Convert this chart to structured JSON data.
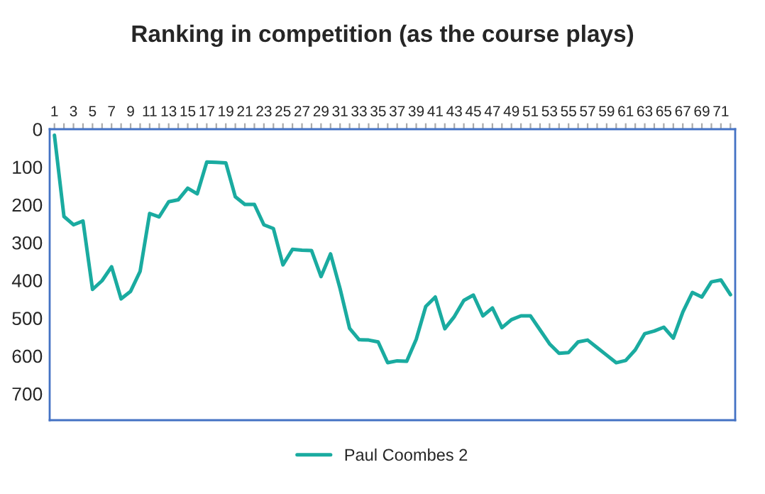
{
  "chart_data": {
    "type": "line",
    "title": "Ranking in competition (as the course plays)",
    "categories": [
      "1",
      null,
      "3",
      null,
      "5",
      null,
      "7",
      null,
      "9",
      null,
      "11",
      null,
      "13",
      null,
      "15",
      null,
      "17",
      null,
      "19",
      null,
      "21",
      null,
      "23",
      null,
      "25",
      null,
      "27",
      null,
      "29",
      null,
      "31",
      null,
      "33",
      null,
      "35",
      null,
      "37",
      null,
      "39",
      null,
      "41",
      null,
      "43",
      null,
      "45",
      null,
      "47",
      null,
      "49",
      null,
      "51",
      null,
      "53",
      null,
      "55",
      null,
      "57",
      null,
      "59",
      null,
      "61",
      null,
      "63",
      null,
      "65",
      null,
      "67",
      null,
      "69",
      null,
      "71",
      null
    ],
    "series": [
      {
        "name": "Paul Coombes 2",
        "color": "#1aaba0",
        "values": [
          16,
          231,
          253,
          243,
          424,
          401,
          364,
          449,
          429,
          376,
          223,
          232,
          192,
          187,
          156,
          171,
          87,
          88,
          89,
          179,
          199,
          199,
          253,
          263,
          359,
          318,
          320,
          321,
          390,
          330,
          422,
          527,
          557,
          558,
          563,
          618,
          613,
          614,
          556,
          469,
          444,
          528,
          496,
          453,
          439,
          494,
          473,
          525,
          504,
          494,
          494,
          531,
          568,
          593,
          591,
          563,
          558,
          578,
          598,
          618,
          612,
          584,
          541,
          534,
          524,
          553,
          484,
          432,
          444,
          404,
          399,
          438
        ]
      }
    ],
    "ylim": [
      770,
      0
    ],
    "yticks": [
      0,
      100,
      200,
      300,
      400,
      500,
      600,
      700
    ],
    "legend": "bottom",
    "grid": false,
    "marker": "none",
    "line_style": "solid"
  }
}
